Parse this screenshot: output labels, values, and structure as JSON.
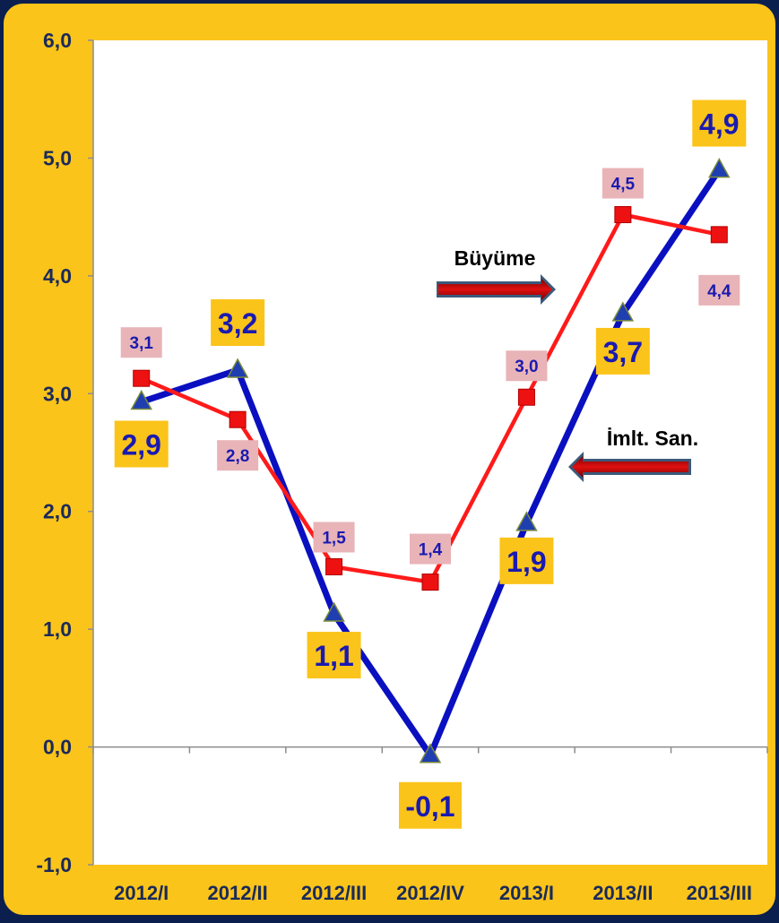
{
  "colors": {
    "background": "#0a1f4e",
    "panel": "#fbc41a",
    "plot_area": "#ffffff",
    "series_growth": "#ff1a1a",
    "series_manufacturing": "#0a10c0",
    "marker_triangle": "#1f3fb0",
    "label_box_large": "#fbc41a",
    "label_box_small": "#e8b4b8",
    "label_text": "#1a1ab0"
  },
  "chart_data": {
    "type": "line",
    "categories": [
      "2012/I",
      "2012/II",
      "2012/III",
      "2012/IV",
      "2013/I",
      "2013/II",
      "2013/III"
    ],
    "ylim": [
      -1.0,
      6.0
    ],
    "yticks": [
      "-1,0",
      "0,0",
      "1,0",
      "2,0",
      "3,0",
      "4,0",
      "5,0",
      "6,0"
    ],
    "ytick_values": [
      -1,
      0,
      1,
      2,
      3,
      4,
      5,
      6
    ],
    "grid": false,
    "series": [
      {
        "name": "Büyüme",
        "values": [
          3.13,
          2.78,
          1.53,
          1.4,
          2.97,
          4.52,
          4.35
        ],
        "labels": [
          "3,1",
          "2,8",
          "1,5",
          "1,4",
          "3,0",
          "4,5",
          "4,4"
        ],
        "marker": "square"
      },
      {
        "name": "İmlt. San.",
        "values": [
          2.93,
          3.2,
          1.13,
          -0.07,
          1.9,
          3.68,
          4.9
        ],
        "labels": [
          "2,9",
          "3,2",
          "1,1",
          "-0,1",
          "1,9",
          "3,7",
          "4,9"
        ],
        "marker": "triangle"
      }
    ]
  }
}
